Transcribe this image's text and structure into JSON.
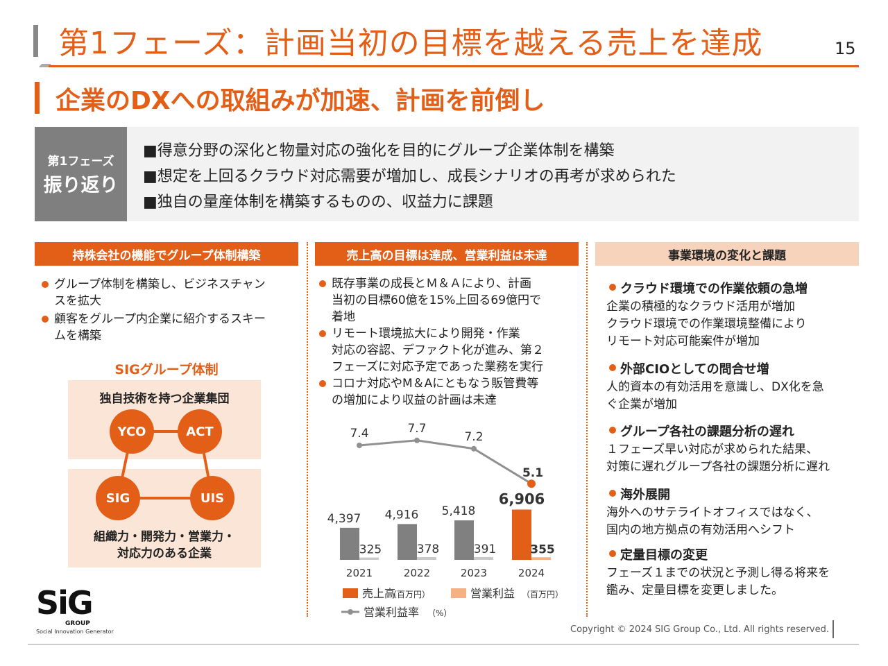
{
  "title": "第1フェーズ：計画当初の目標を越える売上を達成",
  "page_number": "15",
  "subtitle": "企業のDXへの取組みが加速、計画を前倒し",
  "review": {
    "label_line1": "第1フェーズ",
    "label_line2": "振り返り",
    "items": [
      "■得意分野の深化と物量対応の強化を目的にグループ企業体制を構築",
      "■想定を上回るクラウド対応需要が増加し、成長シナリオの再考が求められた",
      "■独自の量産体制を構築するものの、収益力に課題"
    ]
  },
  "col1": {
    "header": "持株会社の機能でグループ体制構築",
    "bullets": [
      [
        "グループ体制を構築し、ビジネスチャン",
        "スを拡大"
      ],
      [
        "顧客をグループ内企業に紹介するスキー",
        "ムを構築"
      ]
    ],
    "diagram_title": "SIGグループ体制",
    "top_label": "独自技術を持つ企業集団",
    "bottom_label_line1": "組織力・開発力・営業力・",
    "bottom_label_line2": "対応力のある企業",
    "nodes": [
      "YCO",
      "ACT",
      "SIG",
      "UIS"
    ],
    "accent_color": "#E35F18",
    "box_color": "#FBE5D6"
  },
  "col2": {
    "header": "売上高の目標は達成、営業利益は未達",
    "bullets": [
      [
        "既存事業の成長とＭ＆Ａにより、計画",
        "当初の目標60億を15%上回る69億円で",
        "着地"
      ],
      [
        "リモート環境拡大により開発・作業",
        "対応の容認、デファクト化が進み、第２",
        "フェーズに対応予定であった業務を実行"
      ],
      [
        "コロナ対応やM＆Aにともなう販管費等",
        "の増加により収益の計画は未達"
      ]
    ]
  },
  "chart_data": {
    "type": "bar",
    "categories": [
      "2021",
      "2022",
      "2023",
      "2024"
    ],
    "series": [
      {
        "name": "売上高",
        "unit": "（百万円）",
        "values": [
          4397,
          4916,
          5418,
          6906
        ],
        "labels": [
          "4,397",
          "4,916",
          "5,418",
          "6,906"
        ],
        "colors": [
          "#808080",
          "#808080",
          "#808080",
          "#E35F18"
        ]
      },
      {
        "name": "営業利益",
        "unit": "（百万円）",
        "values": [
          325,
          378,
          391,
          355
        ],
        "labels": [
          "325",
          "378",
          "391",
          "355"
        ],
        "colors": [
          "#C9C9C9",
          "#C9C9C9",
          "#C9C9C9",
          "#F4B183"
        ]
      },
      {
        "name": "営業利益率",
        "unit": "（%）",
        "type": "line",
        "values": [
          7.4,
          7.7,
          7.2,
          5.1
        ],
        "labels": [
          "7.4",
          "7.7",
          "7.2",
          "5.1"
        ],
        "color": "#909090",
        "highlight_color": "#E35F18"
      }
    ],
    "legend_position": "bottom",
    "grid": false
  },
  "col3": {
    "header": "事業環境の変化と課題",
    "sections": [
      {
        "title": "クラウド環境での作業依頼の急増",
        "lines": [
          "企業の積極的なクラウド活用が増加",
          "クラウド環境での作業環境整備により",
          "リモート対応可能案件が増加"
        ]
      },
      {
        "title": "外部CIOとしての問合せ増",
        "lines": [
          "人的資本の有効活用を意識し、DX化を急",
          "ぐ企業が増加"
        ]
      },
      {
        "title": "グループ各社の課題分析の遅れ",
        "lines": [
          "１フェーズ早い対応が求められた結果、",
          "対策に遅れグループ各社の課題分析に遅れ"
        ]
      },
      {
        "title": "海外展開",
        "lines": [
          "海外へのサテライトオフィスではなく、",
          "国内の地方拠点の有効活用へシフト"
        ]
      },
      {
        "title": "定量目標の変更",
        "lines": [
          "フェーズ１までの状況と予測し得る将来を",
          "鑑み、定量目標を変更しました。"
        ]
      }
    ]
  },
  "footer": {
    "copyright": "Copyright © 2024 SIG Group Co., Ltd. All rights reserved.",
    "logo_text": "SiG",
    "logo_group": "GROUP",
    "logo_sub": "Social Innovation Generator"
  }
}
